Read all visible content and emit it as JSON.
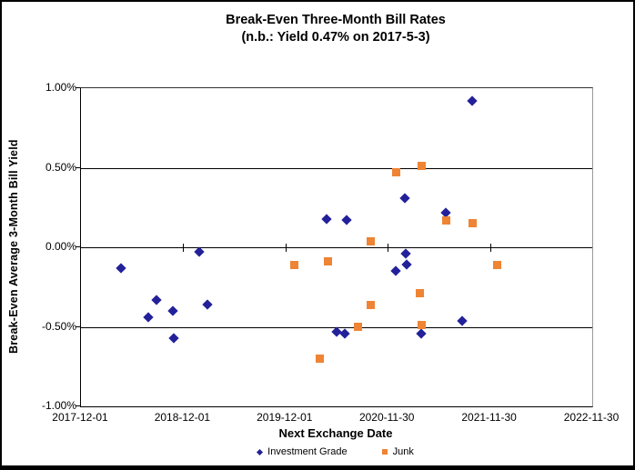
{
  "colors": {
    "investment_grade": "#232199",
    "junk": "#EE8434",
    "gridline": "#000000",
    "plot_border": "#999999",
    "frame_border": "#000000",
    "background": "#FFFFFF"
  },
  "chart_data": {
    "type": "scatter",
    "title": "Break-Even Three-Month Bill Rates",
    "subtitle": "(n.b.: Yield 0.47% on 2017-5-3)",
    "xlabel": "Next Exchange Date",
    "ylabel": "Break-Even Average 3-Month Bill Yield",
    "grid": "horizontal",
    "legend_position": "bottom",
    "ylim": [
      -1.0,
      1.0
    ],
    "y_unit": "percent",
    "y_ticks": [
      "1.00%",
      "0.50%",
      "0.00%",
      "-0.50%",
      "-1.00%"
    ],
    "x_range": [
      "2017-12-01",
      "2022-11-30"
    ],
    "x_ticks": [
      "2017-12-01",
      "2018-12-01",
      "2019-12-01",
      "2020-11-30",
      "2021-11-30",
      "2022-11-30"
    ],
    "series": [
      {
        "name": "Investment Grade",
        "marker": "diamond",
        "color": "#232199",
        "points": [
          {
            "x": "2018-04-22",
            "y": -0.13
          },
          {
            "x": "2018-07-30",
            "y": -0.44
          },
          {
            "x": "2018-08-27",
            "y": -0.33
          },
          {
            "x": "2018-10-26",
            "y": -0.4
          },
          {
            "x": "2018-10-29",
            "y": -0.57
          },
          {
            "x": "2019-01-28",
            "y": -0.03
          },
          {
            "x": "2019-02-24",
            "y": -0.36
          },
          {
            "x": "2020-04-24",
            "y": 0.18
          },
          {
            "x": "2020-06-01",
            "y": -0.53
          },
          {
            "x": "2020-06-28",
            "y": -0.54
          },
          {
            "x": "2020-07-05",
            "y": 0.17
          },
          {
            "x": "2020-12-29",
            "y": -0.15
          },
          {
            "x": "2021-01-31",
            "y": 0.31
          },
          {
            "x": "2021-02-01",
            "y": -0.04
          },
          {
            "x": "2021-02-06",
            "y": -0.11
          },
          {
            "x": "2021-03-30",
            "y": -0.54
          },
          {
            "x": "2021-06-24",
            "y": 0.22
          },
          {
            "x": "2021-08-22",
            "y": -0.46
          },
          {
            "x": "2021-09-28",
            "y": 0.92
          }
        ]
      },
      {
        "name": "Junk",
        "marker": "square",
        "color": "#EE8434",
        "points": [
          {
            "x": "2020-01-01",
            "y": -0.11
          },
          {
            "x": "2020-03-31",
            "y": -0.7
          },
          {
            "x": "2020-04-29",
            "y": -0.09
          },
          {
            "x": "2020-08-16",
            "y": -0.5
          },
          {
            "x": "2020-09-29",
            "y": 0.04
          },
          {
            "x": "2020-09-29",
            "y": -0.36
          },
          {
            "x": "2020-12-30",
            "y": 0.47
          },
          {
            "x": "2021-03-26",
            "y": -0.29
          },
          {
            "x": "2021-03-30",
            "y": 0.51
          },
          {
            "x": "2021-03-30",
            "y": -0.49
          },
          {
            "x": "2021-06-28",
            "y": 0.17
          },
          {
            "x": "2021-09-28",
            "y": 0.15
          },
          {
            "x": "2021-12-27",
            "y": -0.11
          }
        ]
      }
    ]
  }
}
